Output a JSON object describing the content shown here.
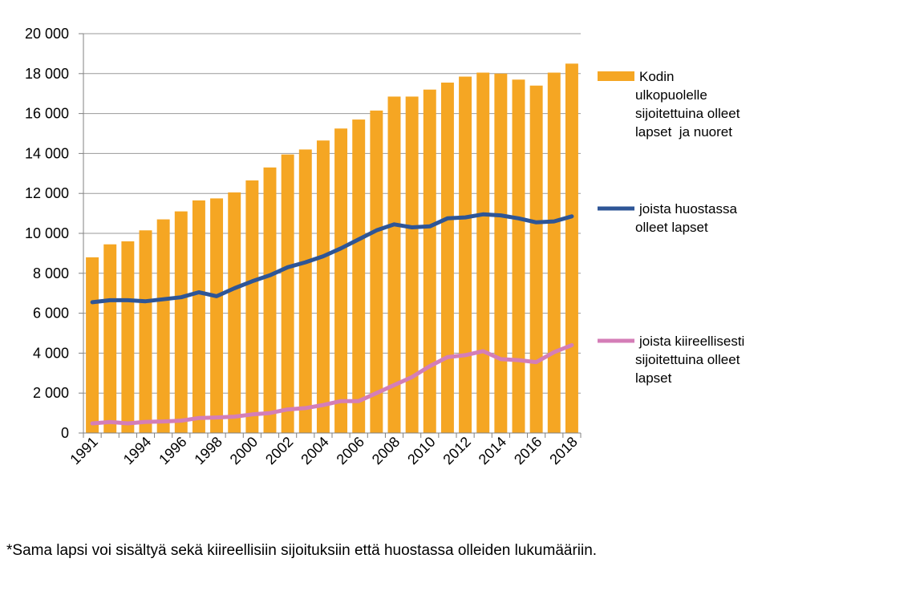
{
  "chart_data": {
    "type": "bar",
    "title": "",
    "xlabel": "",
    "ylabel": "",
    "ylim": [
      0,
      20000
    ],
    "y_ticks": [
      "0",
      "2 000",
      "4 000",
      "6 000",
      "8 000",
      "10 000",
      "12 000",
      "14 000",
      "16 000",
      "18 000",
      "20 000"
    ],
    "y_tick_values": [
      0,
      2000,
      4000,
      6000,
      8000,
      10000,
      12000,
      14000,
      16000,
      18000,
      20000
    ],
    "grid": true,
    "categories": [
      1991,
      1992,
      1993,
      1994,
      1995,
      1996,
      1997,
      1998,
      1999,
      2000,
      2001,
      2002,
      2003,
      2004,
      2005,
      2006,
      2007,
      2008,
      2009,
      2010,
      2011,
      2012,
      2013,
      2014,
      2015,
      2016,
      2017,
      2018
    ],
    "x_tick_labels": [
      "1991",
      "1994",
      "1996",
      "1998",
      "2000",
      "2002",
      "2004",
      "2006",
      "2008",
      "2010",
      "2012",
      "2014",
      "2016",
      "2018"
    ],
    "x_tick_years": [
      1991,
      1994,
      1996,
      1998,
      2000,
      2002,
      2004,
      2006,
      2008,
      2010,
      2012,
      2014,
      2016,
      2018
    ],
    "series": [
      {
        "name": "Kodin ulkopuolelle sijoitettuina olleet lapset ja nuoret",
        "legend_lines": [
          "Kodin",
          "ulkopuolelle",
          "sijoitettuina olleet",
          "lapset  ja nuoret"
        ],
        "kind": "bar",
        "color": "#F5A623",
        "values": [
          8800,
          9450,
          9600,
          10150,
          10700,
          11100,
          11650,
          11750,
          12050,
          12650,
          13300,
          13950,
          14200,
          14650,
          15250,
          15700,
          16150,
          16850,
          16850,
          17200,
          17550,
          17850,
          18050,
          18000,
          17700,
          17400,
          18050,
          18500
        ]
      },
      {
        "name": "joista huostassa olleet lapset",
        "legend_lines": [
          "joista huostassa",
          "olleet lapset"
        ],
        "kind": "line",
        "color": "#2E5596",
        "values": [
          6550,
          6650,
          6650,
          6600,
          6700,
          6800,
          7050,
          6850,
          7250,
          7600,
          7900,
          8300,
          8550,
          8850,
          9250,
          9700,
          10150,
          10450,
          10300,
          10350,
          10750,
          10800,
          10950,
          10900,
          10750,
          10550,
          10600,
          10850
        ]
      },
      {
        "name": "joista kiireellisesti sijoitettuina olleet lapset",
        "legend_lines": [
          "joista kiireellisesti",
          "sijoitettuina olleet",
          "lapset"
        ],
        "kind": "line",
        "color": "#D47EB7",
        "values": [
          480,
          550,
          480,
          560,
          580,
          620,
          750,
          780,
          820,
          930,
          1000,
          1180,
          1250,
          1400,
          1600,
          1600,
          2000,
          2400,
          2800,
          3350,
          3800,
          3900,
          4100,
          3700,
          3650,
          3550,
          4050,
          4400
        ]
      }
    ],
    "legend_position": "right"
  },
  "footnote": "*Sama lapsi voi sisältyä sekä kiireellisiin sijoituksiin että huostassa olleiden lukumääriin."
}
